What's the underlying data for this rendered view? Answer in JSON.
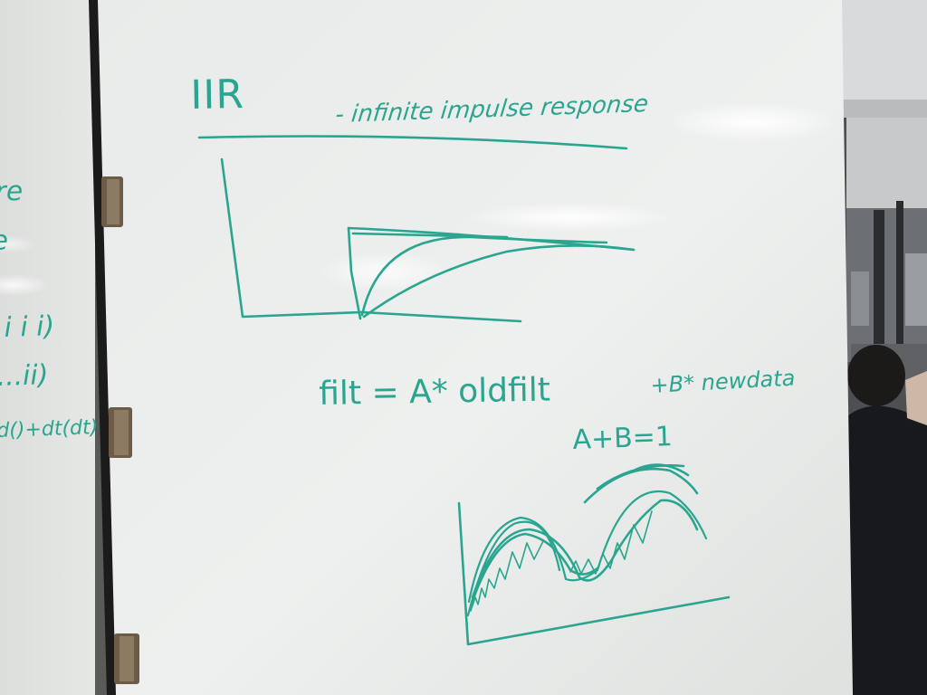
{
  "colors": {
    "marker": "#2aa58f",
    "board": "#eceeec",
    "frame": "#1b1b1b",
    "hinge": "#7a6a55",
    "background": "#5a5a58"
  },
  "whiteboard": {
    "title": "IIR",
    "subtitle": "- infinite impulse response",
    "formula_main": "filt = A* oldfilt",
    "formula_tail": "+B* newdata",
    "constraint": "A+B=1"
  },
  "left_panel": {
    "line_1": "re",
    "line_2": "e",
    "line_3": "i i i)",
    "line_4": "...ii)",
    "line_5": "d()+dt(dt)"
  }
}
